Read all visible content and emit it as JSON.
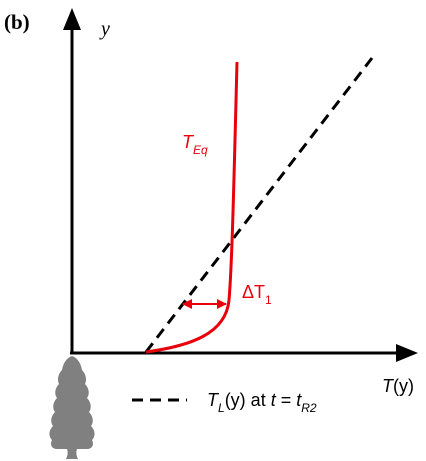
{
  "panel_label": "(b)",
  "axes": {
    "y_label": "y",
    "x_label": {
      "italic_part": "T",
      "rest": "(y)"
    }
  },
  "curve_label": {
    "main": "T",
    "sub": "Eq"
  },
  "delta_label": {
    "main": "ΔT",
    "sub": "1"
  },
  "legend": {
    "line_style": "dashed",
    "text": {
      "T": "T",
      "L_sub": "L",
      "mid": "(y) at ",
      "t1": "t",
      "eq": " = ",
      "t2": "t",
      "R2_sub": "R2"
    }
  },
  "colors": {
    "axis": "#000000",
    "curve": "#e8000b",
    "dashed_line": "#000000",
    "tree": "#808080"
  }
}
